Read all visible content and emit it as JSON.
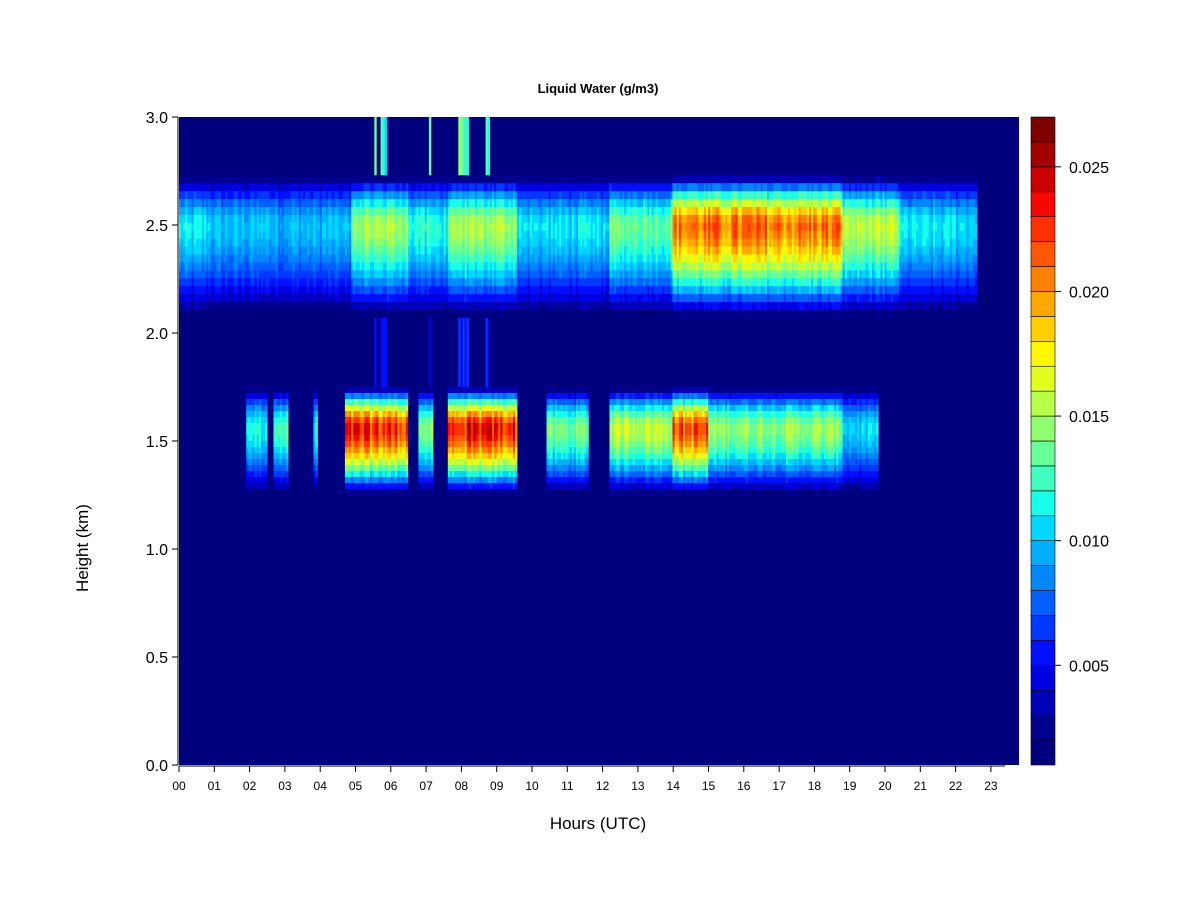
{
  "chart_data": {
    "type": "heatmap",
    "title": "Liquid Water (g/m3)",
    "xlabel": "Hours (UTC)",
    "ylabel": "Height (km)",
    "xlim": [
      0,
      23.8
    ],
    "ylim": [
      0.0,
      3.0
    ],
    "x_ticks": [
      "00",
      "01",
      "02",
      "03",
      "04",
      "05",
      "06",
      "07",
      "08",
      "09",
      "10",
      "11",
      "12",
      "13",
      "14",
      "15",
      "16",
      "17",
      "18",
      "19",
      "20",
      "21",
      "22",
      "23"
    ],
    "y_ticks": [
      "0.0",
      "0.5",
      "1.0",
      "1.5",
      "2.0",
      "2.5",
      "3.0"
    ],
    "colorbar": {
      "range": [
        0.001,
        0.027
      ],
      "ticks": [
        "0.005",
        "0.010",
        "0.015",
        "0.020",
        "0.025"
      ],
      "colors": [
        "#00007F",
        "#00008F",
        "#0000B8",
        "#0000E0",
        "#0010FF",
        "#0038FF",
        "#0060FF",
        "#0088FF",
        "#00B0FF",
        "#00D8FF",
        "#17FFE8",
        "#3FFFC0",
        "#67FF98",
        "#8FFF70",
        "#B8FF47",
        "#E0FF1F",
        "#FFF700",
        "#FFD000",
        "#FFA800",
        "#FF8000",
        "#FF5800",
        "#FF3000",
        "#F50800",
        "#CC0000",
        "#A40000",
        "#7F0000"
      ]
    },
    "layers": [
      {
        "name": "upper",
        "base": 2.07,
        "top": 2.73,
        "core": 2.5,
        "segments": [
          {
            "start": 0.0,
            "end": 0.9,
            "peak": 0.0115
          },
          {
            "start": 0.9,
            "end": 4.9,
            "peak": 0.0105
          },
          {
            "start": 4.9,
            "end": 6.5,
            "peak": 0.016
          },
          {
            "start": 6.5,
            "end": 7.6,
            "peak": 0.0125
          },
          {
            "start": 7.6,
            "end": 9.6,
            "peak": 0.016
          },
          {
            "start": 9.6,
            "end": 12.2,
            "peak": 0.0115
          },
          {
            "start": 12.2,
            "end": 14.0,
            "peak": 0.0145
          },
          {
            "start": 14.0,
            "end": 18.8,
            "peak": 0.022
          },
          {
            "start": 18.8,
            "end": 20.4,
            "peak": 0.0165
          },
          {
            "start": 20.4,
            "end": 22.6,
            "peak": 0.0115
          }
        ]
      },
      {
        "name": "lower",
        "base": 1.25,
        "top": 1.75,
        "core": 1.56,
        "segments": [
          {
            "start": 1.9,
            "end": 2.5,
            "peak": 0.0125
          },
          {
            "start": 2.7,
            "end": 3.1,
            "peak": 0.0135
          },
          {
            "start": 3.8,
            "end": 3.95,
            "peak": 0.012
          },
          {
            "start": 4.7,
            "end": 6.5,
            "peak": 0.024
          },
          {
            "start": 6.8,
            "end": 7.2,
            "peak": 0.0155
          },
          {
            "start": 7.6,
            "end": 9.6,
            "peak": 0.0245
          },
          {
            "start": 10.4,
            "end": 11.6,
            "peak": 0.0145
          },
          {
            "start": 12.2,
            "end": 14.0,
            "peak": 0.017
          },
          {
            "start": 14.0,
            "end": 15.0,
            "peak": 0.023
          },
          {
            "start": 15.0,
            "end": 18.8,
            "peak": 0.0155
          },
          {
            "start": 18.8,
            "end": 19.8,
            "peak": 0.011
          }
        ]
      }
    ],
    "columns": [
      {
        "start": 5.7,
        "end": 5.9,
        "top": 3.0
      },
      {
        "start": 5.55,
        "end": 5.6,
        "top": 3.0
      },
      {
        "start": 7.05,
        "end": 7.15,
        "top": 3.0
      },
      {
        "start": 7.9,
        "end": 8.2,
        "top": 3.0
      },
      {
        "start": 8.7,
        "end": 8.8,
        "top": 3.0
      }
    ]
  }
}
